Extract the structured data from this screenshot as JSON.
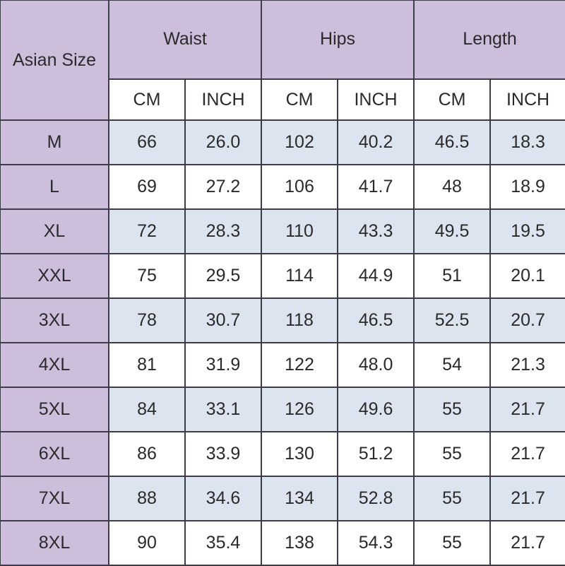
{
  "header": {
    "size_label": "Asian Size",
    "groups": [
      "Waist",
      "Hips",
      "Length"
    ],
    "units": [
      "CM",
      "INCH",
      "CM",
      "INCH",
      "CM",
      "INCH"
    ]
  },
  "rows": [
    {
      "size": "M",
      "values": [
        "66",
        "26.0",
        "102",
        "40.2",
        "46.5",
        "18.3"
      ]
    },
    {
      "size": "L",
      "values": [
        "69",
        "27.2",
        "106",
        "41.7",
        "48",
        "18.9"
      ]
    },
    {
      "size": "XL",
      "values": [
        "72",
        "28.3",
        "110",
        "43.3",
        "49.5",
        "19.5"
      ]
    },
    {
      "size": "XXL",
      "values": [
        "75",
        "29.5",
        "114",
        "44.9",
        "51",
        "20.1"
      ]
    },
    {
      "size": "3XL",
      "values": [
        "78",
        "30.7",
        "118",
        "46.5",
        "52.5",
        "20.7"
      ]
    },
    {
      "size": "4XL",
      "values": [
        "81",
        "31.9",
        "122",
        "48.0",
        "54",
        "21.3"
      ]
    },
    {
      "size": "5XL",
      "values": [
        "84",
        "33.1",
        "126",
        "49.6",
        "55",
        "21.7"
      ]
    },
    {
      "size": "6XL",
      "values": [
        "86",
        "33.9",
        "130",
        "51.2",
        "55",
        "21.7"
      ]
    },
    {
      "size": "7XL",
      "values": [
        "88",
        "34.6",
        "134",
        "52.8",
        "55",
        "21.7"
      ]
    },
    {
      "size": "8XL",
      "values": [
        "90",
        "35.4",
        "138",
        "54.3",
        "55",
        "21.7"
      ]
    }
  ],
  "colors": {
    "header": "#cdbfdc",
    "row_alt": "#dce5ef",
    "row": "#ffffff",
    "border": "#3c3c48"
  }
}
